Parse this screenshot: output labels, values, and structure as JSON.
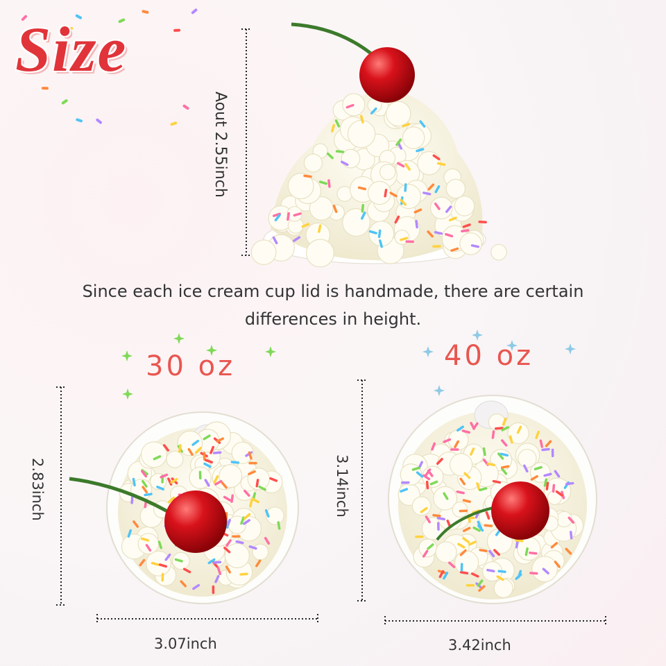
{
  "title": "Size",
  "top_item": {
    "height_label": "Aout 2.55inch"
  },
  "note": "Since each ice cream cup lid is handmade, there are certain differences in height.",
  "items": [
    {
      "name": "30 oz",
      "height_label": "2.83inch",
      "width_label": "3.07inch"
    },
    {
      "name": "40 oz",
      "height_label": "3.14inch",
      "width_label": "3.42inch"
    }
  ]
}
